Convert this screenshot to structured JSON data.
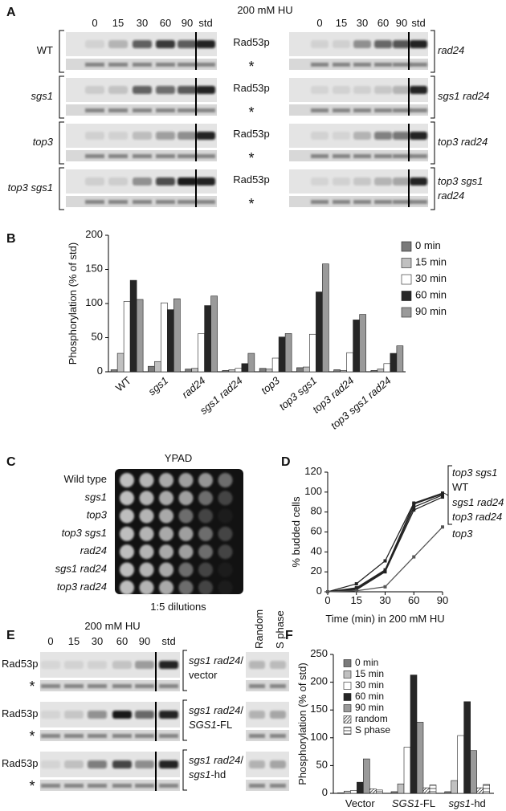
{
  "panel_a": {
    "label": "A",
    "treatment": "200 mM HU",
    "lanes": [
      "0",
      "15",
      "30",
      "60",
      "90",
      "std"
    ],
    "protein": "Rad53p",
    "loading": "*",
    "left_strains": [
      "WT",
      "sgs1",
      "top3",
      "top3 sgs1"
    ],
    "right_strains": [
      [
        "rad24"
      ],
      [
        "sgs1 rad24"
      ],
      [
        "top3 rad24"
      ],
      [
        "top3 sgs1",
        "rad24"
      ]
    ]
  },
  "panel_c": {
    "label": "C",
    "medium": "YPAD",
    "strains": [
      "Wild type",
      "sgs1",
      "top3",
      "top3 sgs1",
      "rad24",
      "sgs1 rad24",
      "top3 rad24"
    ],
    "note": "1:5 dilutions"
  },
  "panel_e": {
    "label": "E",
    "treatment": "200 mM HU",
    "lanes": [
      "0",
      "15",
      "30",
      "60",
      "90",
      "std"
    ],
    "controls": [
      "Random",
      "S phase"
    ],
    "protein": "Rad53p",
    "loading": "*",
    "constructs": [
      [
        "sgs1 rad24/",
        "vector"
      ],
      [
        "sgs1 rad24/",
        "SGS1-FL"
      ],
      [
        "sgs1 rad24/",
        "sgs1-hd"
      ]
    ]
  },
  "chart_data": [
    {
      "label": "B",
      "type": "bar",
      "ylabel": "Phosphorylation (% of std)",
      "categories": [
        "WT",
        "sgs1",
        "rad24",
        "sgs1 rad24",
        "top3",
        "top3 sgs1",
        "top3 rad24",
        "top3 sgs1 rad24"
      ],
      "series": [
        {
          "name": "0 min",
          "color": "#7a7a7a",
          "values": [
            3,
            8,
            4,
            2,
            5,
            6,
            3,
            2
          ]
        },
        {
          "name": "15 min",
          "color": "#c0c0c0",
          "values": [
            27,
            15,
            5,
            3,
            4,
            7,
            2,
            4
          ]
        },
        {
          "name": "30 min",
          "color": "#ffffff",
          "values": [
            103,
            101,
            56,
            5,
            20,
            55,
            28,
            12
          ]
        },
        {
          "name": "60 min",
          "color": "#262626",
          "values": [
            134,
            91,
            97,
            12,
            51,
            117,
            76,
            27
          ]
        },
        {
          "name": "90 min",
          "color": "#9a9a9a",
          "values": [
            106,
            107,
            111,
            27,
            56,
            158,
            84,
            38
          ]
        }
      ],
      "ylim": [
        0,
        200
      ],
      "yticks": [
        0,
        50,
        100,
        150,
        200
      ]
    },
    {
      "label": "D",
      "type": "line",
      "xlabel": "Time (min) in 200 mM HU",
      "ylabel": "% budded cells",
      "categories": [
        "0",
        "15",
        "30",
        "60",
        "90"
      ],
      "series": [
        {
          "name": "top3 sgs1",
          "color": "#222222",
          "values": [
            0,
            8,
            31,
            89,
            99
          ]
        },
        {
          "name": "WT",
          "color": "#222222",
          "values": [
            0,
            4,
            22,
            88,
            98
          ]
        },
        {
          "name": "sgs1 rad24",
          "color": "#222222",
          "values": [
            0,
            3,
            21,
            85,
            97
          ]
        },
        {
          "name": "top3 rad24",
          "color": "#222222",
          "values": [
            0,
            2,
            20,
            82,
            95
          ]
        },
        {
          "name": "top3",
          "color": "#555555",
          "values": [
            0,
            1,
            5,
            35,
            65
          ]
        }
      ],
      "ylim": [
        0,
        120
      ],
      "yticks": [
        0,
        20,
        40,
        60,
        80,
        100,
        120
      ]
    },
    {
      "label": "F",
      "type": "bar",
      "ylabel": "Phosphorylation (% of std)",
      "categories": [
        "Vector",
        "SGS1-FL",
        "sgs1-hd"
      ],
      "series": [
        {
          "name": "0 min",
          "color": "#7a7a7a",
          "values": [
            1,
            3,
            3
          ]
        },
        {
          "name": "15 min",
          "color": "#c0c0c0",
          "values": [
            4,
            17,
            23
          ]
        },
        {
          "name": "30 min",
          "color": "#ffffff",
          "values": [
            5,
            83,
            104
          ]
        },
        {
          "name": "60 min",
          "color": "#262626",
          "values": [
            20,
            213,
            165
          ]
        },
        {
          "name": "90 min",
          "color": "#9a9a9a",
          "values": [
            62,
            128,
            77
          ]
        },
        {
          "name": "random",
          "color": "#555555",
          "hatch": "diagonal",
          "values": [
            8,
            10,
            10
          ]
        },
        {
          "name": "S phase",
          "color": "#555555",
          "hatch": "horizontal",
          "values": [
            6,
            15,
            16
          ]
        }
      ],
      "ylim": [
        0,
        250
      ],
      "yticks": [
        0,
        50,
        100,
        150,
        200,
        250
      ]
    }
  ]
}
